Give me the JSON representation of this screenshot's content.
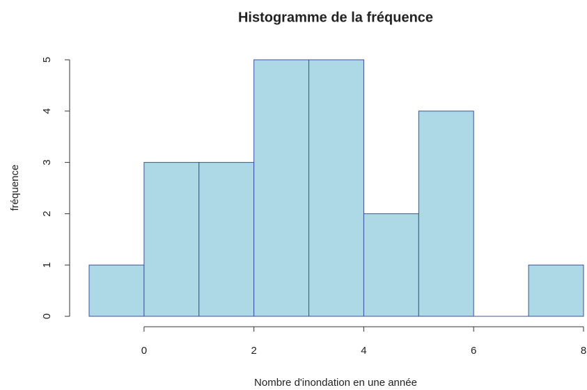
{
  "chart_data": {
    "type": "histogram",
    "title": "Histogramme de la fréquence",
    "x_label": "Nombre d'inondation en une année",
    "y_label": "fréquence",
    "bins": [
      -1,
      0,
      1,
      2,
      3,
      4,
      5,
      6,
      7,
      8
    ],
    "values": [
      1,
      3,
      3,
      5,
      5,
      2,
      4,
      0,
      1
    ],
    "color": "#add8e6",
    "edge_color": "#3b4fa0",
    "xlim": [
      -1,
      8
    ],
    "xticks": [
      0,
      2,
      4,
      6,
      8
    ],
    "ylim": [
      0,
      5
    ],
    "yticks": [
      0,
      1,
      2,
      3,
      4,
      5
    ]
  }
}
